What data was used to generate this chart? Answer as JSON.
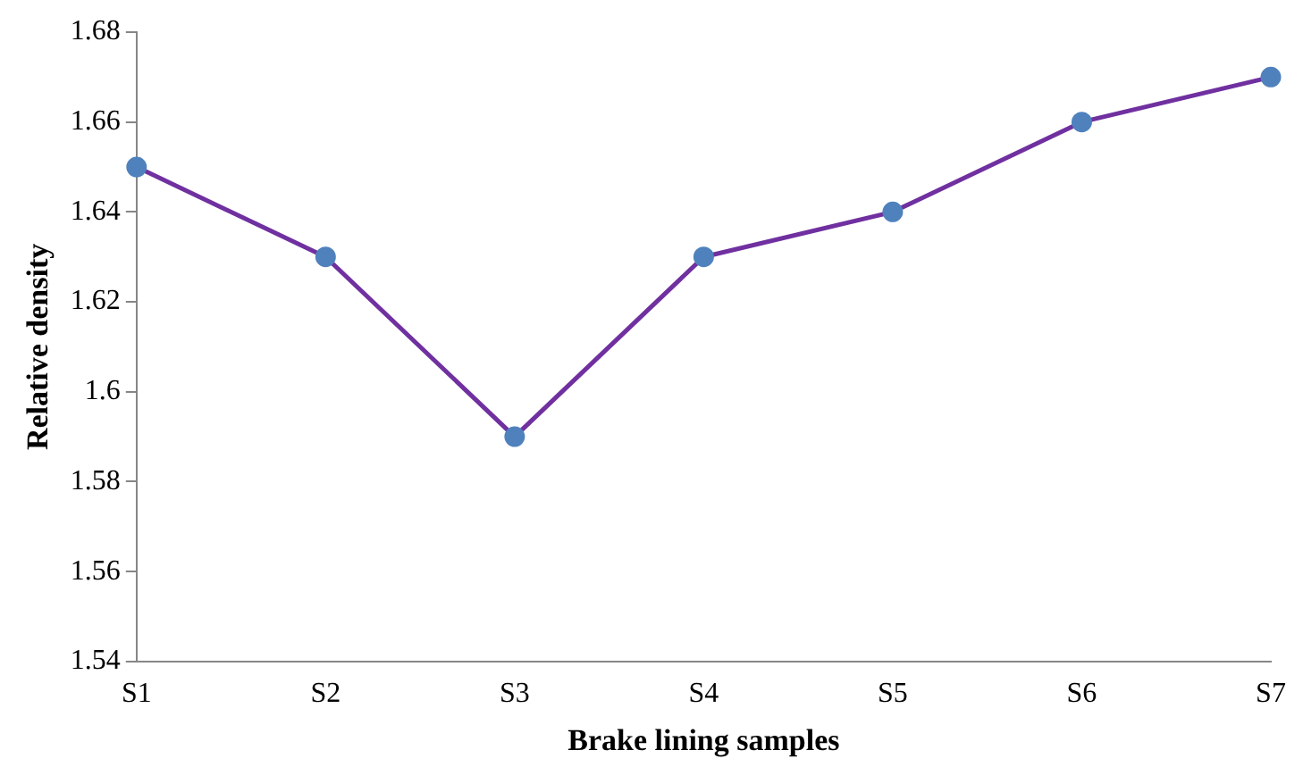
{
  "chart_data": {
    "type": "line",
    "xlabel": "Brake lining samples",
    "ylabel": "Relative density",
    "categories": [
      "S1",
      "S2",
      "S3",
      "S4",
      "S5",
      "S6",
      "S7"
    ],
    "series": [
      {
        "color": "#7030a0",
        "colors": [
          "#4f81bd",
          "#4f81bd",
          "#4f81bd",
          "#4f81bd",
          "#4f81bd",
          "#4f81bd",
          "#4f81bd"
        ],
        "values": [
          1.65,
          1.63,
          1.59,
          1.63,
          1.64,
          1.66,
          1.67
        ]
      }
    ],
    "ylim": [
      1.54,
      1.68
    ],
    "yticks": [
      1.54,
      1.56,
      1.58,
      1.6,
      1.62,
      1.64,
      1.66,
      1.68
    ],
    "grid": false,
    "legend": false,
    "marker": "circle",
    "line_style": "solid"
  }
}
